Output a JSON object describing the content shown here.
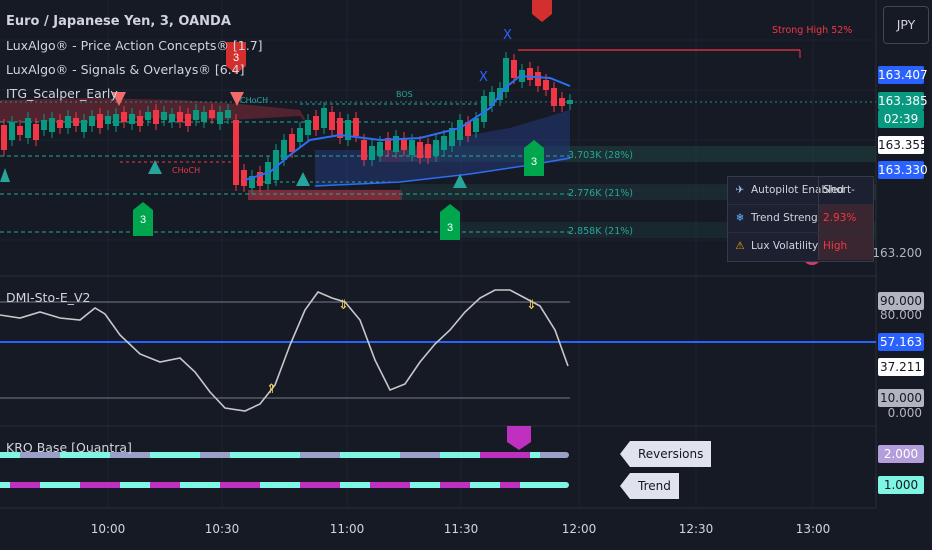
{
  "symbol_title": "Euro / Japanese Yen, 3, OANDA",
  "indicators": [
    "LuxAlgo® - Price Action Concepts® [1.7]",
    "LuxAlgo® - Signals & Overlays® [6.4]",
    "ITG_Scalper_Early"
  ],
  "currency_button": "JPY",
  "price_axis": {
    "badges": [
      {
        "text": "163.407",
        "bg": "#2962ff",
        "fg": "#ffffff"
      },
      {
        "text": "163.385",
        "bg": "#089981",
        "fg": "#ffffff"
      },
      {
        "text": "02:39",
        "bg": "#089981",
        "fg": "#ffffff"
      },
      {
        "text": "163.355",
        "bg": "#ffffff",
        "fg": "#131722"
      },
      {
        "text": "163.330",
        "bg": "#2962ff",
        "fg": "#ffffff"
      }
    ],
    "plain_label": "163.200"
  },
  "chart_annotations": {
    "strong_high": "Strong High 52%",
    "bos": "BOS",
    "choch_top": "CHoCH",
    "choch_bottom": "CHoCH",
    "x_marks": [
      "X",
      "X"
    ],
    "levels": [
      "3.703K (28%)",
      "2.776K (21%)",
      "2.858K (21%)"
    ],
    "signal_labels": [
      "3",
      "3",
      "3",
      "3"
    ]
  },
  "dashboard": {
    "rows": [
      {
        "icon": "✈",
        "label": "Autopilot Enabled",
        "value": "Short-Term",
        "value_color": "#d1d4dc",
        "icon_color": "#9ec8f5"
      },
      {
        "icon": "❄",
        "label": "Trend Strength",
        "value": "2.93%",
        "value_color": "#f23645",
        "icon_color": "#5fb3f5"
      },
      {
        "icon": "⚠",
        "label": "Lux Volatility",
        "value": "High",
        "value_color": "#f23645",
        "icon_color": "#f7a600"
      }
    ]
  },
  "dmi_pane": {
    "title": "DMI-Sto-E_V2",
    "badges": [
      {
        "text": "90.000",
        "bg": "#b2b5be",
        "fg": "#131722"
      },
      {
        "text": "57.163",
        "bg": "#2962ff",
        "fg": "#ffffff"
      },
      {
        "text": "37.211",
        "bg": "#ffffff",
        "fg": "#131722"
      },
      {
        "text": "10.000",
        "bg": "#b2b5be",
        "fg": "#131722"
      }
    ],
    "axis_labels": [
      "80.000",
      "0.000"
    ]
  },
  "kro_pane": {
    "title": "KRO Base [Quantra]",
    "tag_reversions": "Reversions",
    "tag_trend": "Trend",
    "badges": [
      {
        "text": "2.000",
        "bg": "#b39ddb",
        "fg": "#ffffff"
      },
      {
        "text": "1.000",
        "bg": "#7ff5e3",
        "fg": "#131722"
      }
    ]
  },
  "time_axis": [
    "10:00",
    "10:30",
    "11:00",
    "11:30",
    "12:00",
    "12:30",
    "13:00"
  ]
}
